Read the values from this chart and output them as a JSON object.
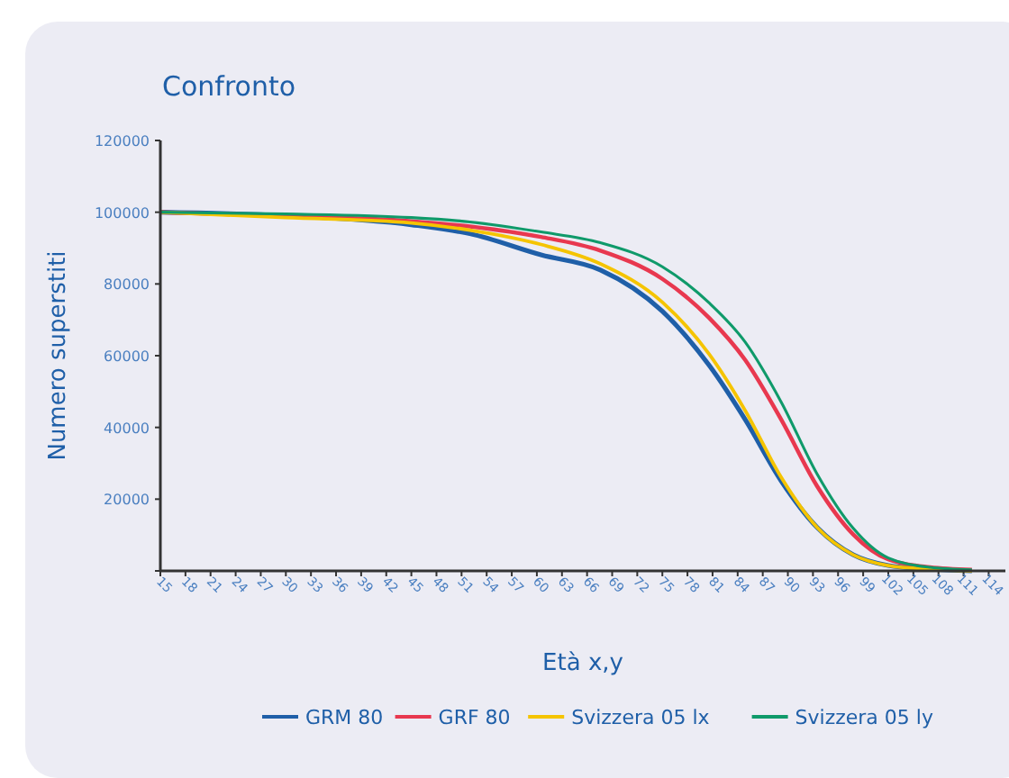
{
  "chart_data": {
    "type": "line",
    "title": "Confronto",
    "xlabel": "Età x,y",
    "ylabel": "Numero superstiti",
    "x": [
      15,
      30,
      45,
      52,
      60.5,
      67.6,
      75,
      80.6,
      84.9,
      89.2,
      93.5,
      97.8,
      102,
      107,
      112
    ],
    "xlim": [
      15,
      116
    ],
    "xticks": [
      15,
      18,
      21,
      24,
      27,
      30,
      33,
      36,
      39,
      42,
      45,
      48,
      51,
      54,
      57,
      60,
      63,
      66,
      69,
      72,
      75,
      78,
      81,
      84,
      87,
      90,
      93,
      96,
      99,
      102,
      105,
      108,
      111,
      114
    ],
    "ylim": [
      0,
      120000
    ],
    "yticks": [
      {
        "value": 0,
        "label": null
      },
      20000,
      40000,
      60000,
      80000,
      100000,
      120000
    ],
    "grid": false,
    "legend": "bottom",
    "marker": "none",
    "line_style": "solid",
    "series": [
      {
        "name": "GRM 80",
        "color": "#1f5fa8",
        "values": [
          100000,
          99000,
          96500,
          94000,
          88100,
          83900,
          72400,
          57300,
          42200,
          25100,
          12100,
          4500,
          1500,
          500,
          0
        ]
      },
      {
        "name": "GRF 80",
        "color": "#e8384f",
        "values": [
          100000,
          99000,
          97500,
          96000,
          93100,
          89300,
          81400,
          70500,
          58800,
          42200,
          23600,
          10200,
          3200,
          1000,
          300
        ]
      },
      {
        "name": "Svizzera 05 lx",
        "color": "#f5c400",
        "values": [
          100000,
          98500,
          97000,
          95000,
          91000,
          85600,
          74900,
          60400,
          44700,
          26100,
          12100,
          4500,
          1500,
          500,
          0
        ]
      },
      {
        "name": "Svizzera 05 ly",
        "color": "#0f9a6a",
        "values": [
          100000,
          99500,
          98500,
          97300,
          94500,
          91500,
          84800,
          74700,
          63800,
          47100,
          27000,
          11900,
          3600,
          1000,
          300
        ]
      }
    ]
  }
}
